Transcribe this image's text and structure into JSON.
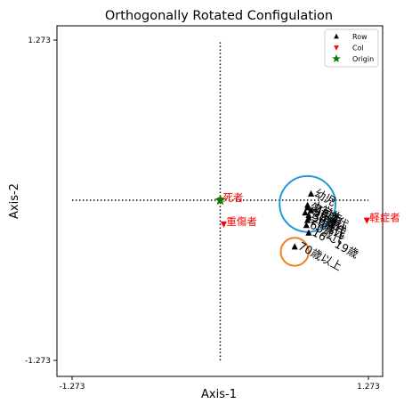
{
  "chart_data": {
    "type": "scatter",
    "title": "Orthogonally Rotated Configulation",
    "xlabel": "Axis-1",
    "ylabel": "Axis-2",
    "xlim": [
      -1.273,
      1.273
    ],
    "ylim": [
      -1.273,
      1.273
    ],
    "xticks": [
      "-1.273",
      "1.273"
    ],
    "yticks": [
      "1.273",
      "-1.273"
    ],
    "grid": false,
    "legend_position": "top-right",
    "legend": [
      {
        "label": "Row",
        "marker": "triangle-up",
        "color": "#000000"
      },
      {
        "label": "Col",
        "marker": "triangle-down",
        "color": "#ff0000"
      },
      {
        "label": "Origin",
        "marker": "star",
        "color": "#008000"
      }
    ],
    "rows": [
      {
        "label": "幼児",
        "x": 0.78,
        "y": 0.05
      },
      {
        "label": "小学生",
        "x": 0.75,
        "y": -0.04
      },
      {
        "label": "中学生",
        "x": 0.73,
        "y": -0.1
      },
      {
        "label": "高校生",
        "x": 0.75,
        "y": -0.06
      },
      {
        "label": "20歳代",
        "x": 0.75,
        "y": -0.16
      },
      {
        "label": "30歳代",
        "x": 0.76,
        "y": -0.12
      },
      {
        "label": "40歳代",
        "x": 0.78,
        "y": -0.08
      },
      {
        "label": "50歳代",
        "x": 0.76,
        "y": -0.14
      },
      {
        "label": "60歳代",
        "x": 0.74,
        "y": -0.2
      },
      {
        "label": "16～19歳",
        "x": 0.76,
        "y": -0.26
      },
      {
        "label": "70歳以上",
        "x": 0.64,
        "y": -0.37
      }
    ],
    "cols": [
      {
        "label": "死者",
        "x": 0.0,
        "y": 0.0
      },
      {
        "label": "重傷者",
        "x": 0.03,
        "y": -0.19
      },
      {
        "label": "軽症者",
        "x": 1.26,
        "y": -0.16
      }
    ],
    "origin": {
      "x": 0.0,
      "y": 0.0
    },
    "circles": [
      {
        "color": "#1f9ad6",
        "cx": 0.75,
        "cy": -0.03,
        "r": 0.24
      },
      {
        "color": "#f08020",
        "cx": 0.64,
        "cy": -0.41,
        "r": 0.12
      }
    ],
    "colors": {
      "row": "#000000",
      "col": "#ff0000",
      "origin": "#008000",
      "ref_line": "#000000"
    }
  }
}
